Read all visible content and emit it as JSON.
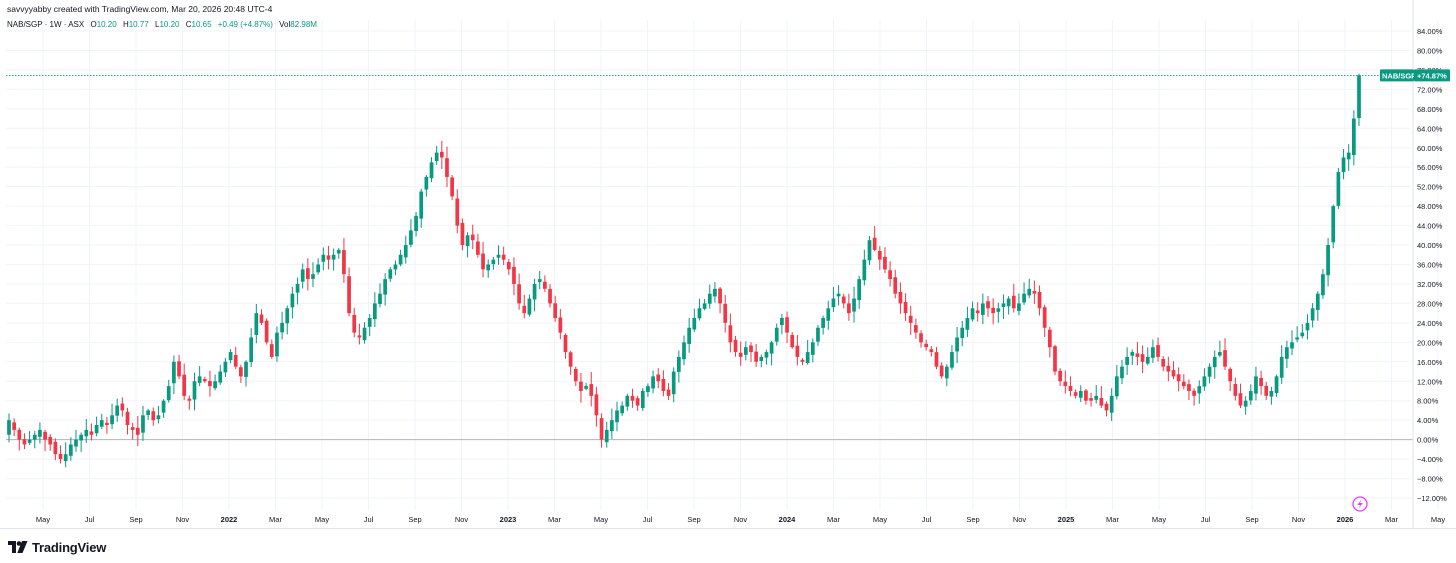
{
  "header": {
    "credit": "savvyyabby created with TradingView.com, Mar 20, 2026 20:48 UTC-4"
  },
  "legend": {
    "symbol": "NAB/SGP · 1W · ASX",
    "o_label": "O",
    "o_value": "10.20",
    "h_label": "H",
    "h_value": "10.77",
    "l_label": "L",
    "l_value": "10.20",
    "c_label": "C",
    "c_value": "10.65",
    "change": "+0.49 (+4.87%)",
    "vol_label": "Vol",
    "vol_value": "82.98M"
  },
  "price_tag": {
    "symbol": "NAB/SGP",
    "value": "+74.87%"
  },
  "logo": {
    "text": "TradingView",
    "icon": "tradingview-logo-icon"
  },
  "colors": {
    "up": "#089981",
    "down": "#f23645",
    "text": "#131722",
    "grid": "#f0f3fa",
    "axis_line": "#b2b5be"
  },
  "chart_data": {
    "type": "candlestick",
    "y_unit": "percent",
    "ylim": [
      -12.5,
      86
    ],
    "y_ticks": [
      "84.00%",
      "80.00%",
      "76.00%",
      "72.00%",
      "68.00%",
      "64.00%",
      "60.00%",
      "56.00%",
      "52.00%",
      "48.00%",
      "44.00%",
      "40.00%",
      "36.00%",
      "32.00%",
      "28.00%",
      "24.00%",
      "20.00%",
      "16.00%",
      "12.00%",
      "8.00%",
      "4.00%",
      "0.00%",
      "−4.00%",
      "−8.00%",
      "−12.00%"
    ],
    "x_ticks": [
      {
        "label": "May",
        "bold": false
      },
      {
        "label": "Jul",
        "bold": false
      },
      {
        "label": "Sep",
        "bold": false
      },
      {
        "label": "Nov",
        "bold": false
      },
      {
        "label": "2022",
        "bold": true
      },
      {
        "label": "Mar",
        "bold": false
      },
      {
        "label": "May",
        "bold": false
      },
      {
        "label": "Jul",
        "bold": false
      },
      {
        "label": "Sep",
        "bold": false
      },
      {
        "label": "Nov",
        "bold": false
      },
      {
        "label": "2023",
        "bold": true
      },
      {
        "label": "Mar",
        "bold": false
      },
      {
        "label": "May",
        "bold": false
      },
      {
        "label": "Jul",
        "bold": false
      },
      {
        "label": "Sep",
        "bold": false
      },
      {
        "label": "Nov",
        "bold": false
      },
      {
        "label": "2024",
        "bold": true
      },
      {
        "label": "Mar",
        "bold": false
      },
      {
        "label": "May",
        "bold": false
      },
      {
        "label": "Jul",
        "bold": false
      },
      {
        "label": "Sep",
        "bold": false
      },
      {
        "label": "Nov",
        "bold": false
      },
      {
        "label": "2025",
        "bold": true
      },
      {
        "label": "Mar",
        "bold": false
      },
      {
        "label": "May",
        "bold": false
      },
      {
        "label": "Jul",
        "bold": false
      },
      {
        "label": "Sep",
        "bold": false
      },
      {
        "label": "Nov",
        "bold": false
      },
      {
        "label": "2026",
        "bold": true
      },
      {
        "label": "Mar",
        "bold": false
      },
      {
        "label": "May",
        "bold": false
      }
    ],
    "baseline_value": 0,
    "last_value": 74.87,
    "weekly_close_path": [
      4,
      2,
      0,
      -1,
      0,
      1,
      2,
      0,
      -1,
      -3,
      -4,
      -3,
      -1,
      0,
      1,
      2,
      1,
      3,
      4,
      3,
      5,
      7,
      6,
      3,
      2,
      1,
      5,
      6,
      4,
      5,
      8,
      11,
      16,
      13,
      9,
      8,
      12,
      13,
      12,
      11,
      12,
      14,
      16,
      18,
      15,
      13,
      16,
      21,
      26,
      24,
      20,
      17,
      22,
      24,
      27,
      30,
      32,
      35,
      33,
      34,
      36,
      38,
      37,
      38,
      39,
      34,
      26,
      22,
      21,
      23,
      25,
      28,
      30,
      33,
      35,
      36,
      38,
      40,
      43,
      46,
      51,
      54,
      57,
      59,
      58,
      54,
      50,
      44,
      40,
      42,
      41,
      38,
      35,
      36,
      37,
      38,
      37,
      35,
      32,
      28,
      26,
      29,
      32,
      33,
      31,
      28,
      25,
      22,
      18,
      15,
      12,
      10,
      11,
      9,
      5,
      0,
      2,
      4,
      6,
      7,
      9,
      8,
      7,
      10,
      11,
      13,
      12,
      10,
      9,
      14,
      17,
      20,
      23,
      25,
      27,
      28,
      30,
      31,
      28,
      24,
      20,
      18,
      17,
      19,
      18,
      16,
      17,
      18,
      20,
      23,
      25,
      22,
      19,
      17,
      16,
      18,
      20,
      23,
      25,
      27,
      29,
      30,
      28,
      26,
      29,
      33,
      37,
      41,
      39,
      37,
      35,
      33,
      30,
      28,
      26,
      24,
      22,
      20,
      19,
      18,
      15,
      13,
      15,
      18,
      21,
      23,
      25,
      27,
      26,
      28,
      27,
      26,
      27,
      28,
      29,
      27,
      28,
      30,
      31,
      30,
      27,
      23,
      19,
      14,
      12,
      11,
      10,
      9,
      10,
      8,
      8,
      9,
      7,
      6,
      9,
      13,
      15,
      17,
      18,
      17,
      16,
      17,
      19,
      17,
      15,
      14,
      13,
      12,
      11,
      10,
      9,
      11,
      13,
      15,
      17,
      18,
      15,
      12,
      9,
      7,
      8,
      10,
      13,
      11,
      9,
      10,
      13,
      17,
      19,
      20,
      21,
      22,
      24,
      27,
      30,
      34,
      40,
      48,
      55,
      58,
      59,
      66,
      74.87
    ]
  }
}
